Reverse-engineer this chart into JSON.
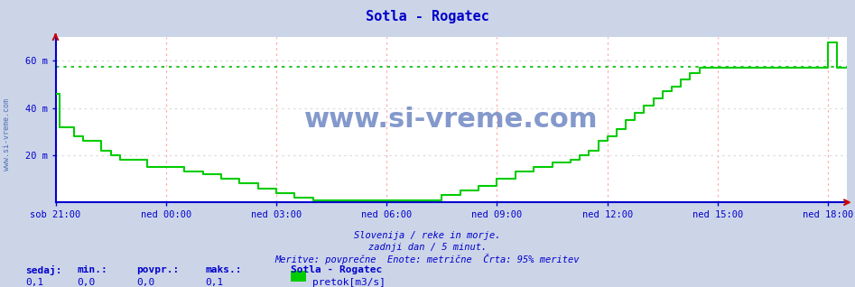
{
  "title": "Sotla - Rogatec",
  "title_color": "#0000cc",
  "outer_bg_color": "#ccd5e8",
  "plot_bg_color": "#ffffff",
  "line_color": "#00cc00",
  "ref_line_color": "#00bb00",
  "ref_line_value": 57.5,
  "ymin": 0,
  "ymax": 70,
  "xlabel_color": "#0000cc",
  "grid_vcolor": "#ffaaaa",
  "grid_hcolor": "#dddddd",
  "watermark_text": "www.si-vreme.com",
  "watermark_color": "#3355aa",
  "axis_color": "#0000cc",
  "ylabel_side_text": "www.si-vreme.com",
  "footer_line1": "Slovenija / reke in morje.",
  "footer_line2": "zadnji dan / 5 minut.",
  "footer_line3": "Meritve: povprečne  Enote: metrične  Črta: 95% meritev",
  "footer_color": "#0000cc",
  "legend_title": "Sotla - Rogatec",
  "legend_label": "pretok[m3/s]",
  "legend_color": "#00cc00",
  "stats_labels": [
    "sedaj:",
    "min.:",
    "povpr.:",
    "maks.:"
  ],
  "stats_values": [
    "0,1",
    "0,0",
    "0,0",
    "0,1"
  ],
  "stats_color": "#0000cc",
  "xtick_labels": [
    "sob 21:00",
    "ned 00:00",
    "ned 03:00",
    "ned 06:00",
    "ned 09:00",
    "ned 12:00",
    "ned 15:00",
    "ned 18:00"
  ],
  "xtick_positions": [
    0,
    3,
    6,
    9,
    12,
    15,
    18,
    21
  ],
  "xlim": [
    0,
    21.5
  ],
  "data_x": [
    0.0,
    0.1,
    0.25,
    0.5,
    0.75,
    1.0,
    1.25,
    1.5,
    1.75,
    2.0,
    2.5,
    3.0,
    3.5,
    4.0,
    4.5,
    5.0,
    5.5,
    6.0,
    6.5,
    7.0,
    7.5,
    8.0,
    8.25,
    8.5,
    8.75,
    9.0,
    9.5,
    10.0,
    10.5,
    11.0,
    11.5,
    12.0,
    12.5,
    13.0,
    13.5,
    14.0,
    14.25,
    14.5,
    14.75,
    15.0,
    15.25,
    15.5,
    15.75,
    16.0,
    16.25,
    16.5,
    16.75,
    17.0,
    17.25,
    17.5,
    17.75,
    18.0,
    18.25,
    18.5,
    18.75,
    19.0,
    19.25,
    19.5,
    19.75,
    20.0,
    20.25,
    20.5,
    20.75,
    21.0,
    21.25,
    21.5
  ],
  "data_y": [
    46,
    32,
    32,
    28,
    26,
    26,
    22,
    20,
    18,
    18,
    15,
    15,
    13,
    12,
    10,
    8,
    6,
    4,
    2,
    1,
    1,
    1,
    1,
    1,
    1,
    1,
    1,
    1,
    3,
    5,
    7,
    10,
    13,
    15,
    17,
    18,
    20,
    22,
    26,
    28,
    31,
    35,
    38,
    41,
    44,
    47,
    49,
    52,
    55,
    57,
    57,
    57,
    57,
    57,
    57,
    57,
    57,
    57,
    57,
    57,
    57,
    57,
    57,
    68,
    57,
    57
  ],
  "arrow_color": "#cc0000"
}
